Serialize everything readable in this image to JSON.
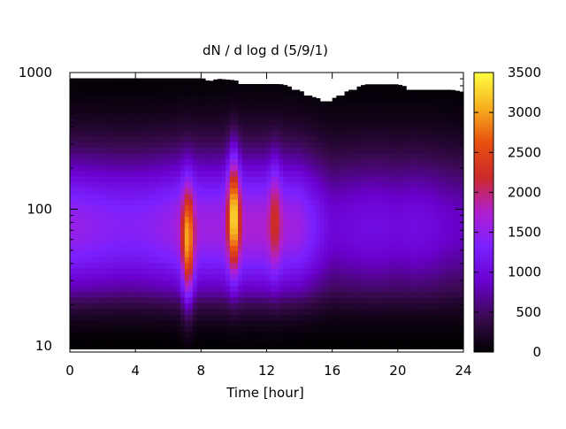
{
  "chart_data": {
    "type": "heatmap",
    "title": "dN / d log d (5/9/1)",
    "xlabel": "Time [hour]",
    "ylabel": "",
    "x_range": [
      0,
      24
    ],
    "x_ticks": [
      "0",
      "4",
      "8",
      "12",
      "16",
      "20",
      "24"
    ],
    "y_scale": "log",
    "y_range": [
      9,
      1000
    ],
    "y_ticks": [
      "10",
      "100",
      "1000"
    ],
    "colorbar": {
      "range": [
        0,
        3500
      ],
      "ticks": [
        "0",
        "500",
        "1000",
        "1500",
        "2000",
        "2500",
        "3000",
        "3500"
      ],
      "palette": [
        "#000000",
        "#3a0a50",
        "#6a00cc",
        "#7a20ff",
        "#b020d0",
        "#cc2a2a",
        "#e85010",
        "#f8b020",
        "#ffff40"
      ]
    },
    "background_level": [
      [
        0,
        1550
      ],
      [
        1,
        1500
      ],
      [
        2,
        1450
      ],
      [
        3,
        1400
      ],
      [
        4,
        1400
      ],
      [
        5,
        1450
      ],
      [
        6,
        1550
      ],
      [
        7,
        1650
      ],
      [
        8,
        1600
      ],
      [
        9,
        1600
      ],
      [
        10,
        1650
      ],
      [
        11,
        1700
      ],
      [
        12,
        1700
      ],
      [
        13,
        1650
      ],
      [
        14,
        1600
      ],
      [
        15,
        1250
      ],
      [
        16,
        950
      ],
      [
        17,
        1000
      ],
      [
        18,
        1050
      ],
      [
        19,
        1050
      ],
      [
        20,
        1000
      ],
      [
        21,
        1050
      ],
      [
        22,
        1000
      ],
      [
        23,
        900
      ],
      [
        24,
        850
      ]
    ],
    "peaks": [
      {
        "time": 7.2,
        "diameter": 55,
        "value": 3000
      },
      {
        "time": 10.0,
        "diameter": 95,
        "value": 3300
      },
      {
        "time": 12.5,
        "diameter": 90,
        "value": 2150
      }
    ],
    "upper_limit": [
      [
        0,
        920
      ],
      [
        1,
        920
      ],
      [
        2,
        920
      ],
      [
        3,
        920
      ],
      [
        4,
        920
      ],
      [
        5,
        920
      ],
      [
        6,
        920
      ],
      [
        7,
        920
      ],
      [
        8,
        920
      ],
      [
        8.5,
        860
      ],
      [
        9,
        900
      ],
      [
        10,
        880
      ],
      [
        11,
        830
      ],
      [
        12,
        830
      ],
      [
        13,
        820
      ],
      [
        14,
        740
      ],
      [
        15,
        650
      ],
      [
        16,
        640
      ],
      [
        17,
        740
      ],
      [
        18,
        820
      ],
      [
        19,
        820
      ],
      [
        20,
        820
      ],
      [
        21,
        760
      ],
      [
        22,
        760
      ],
      [
        23,
        760
      ],
      [
        24,
        720
      ]
    ],
    "lower_limit": 9.5
  }
}
